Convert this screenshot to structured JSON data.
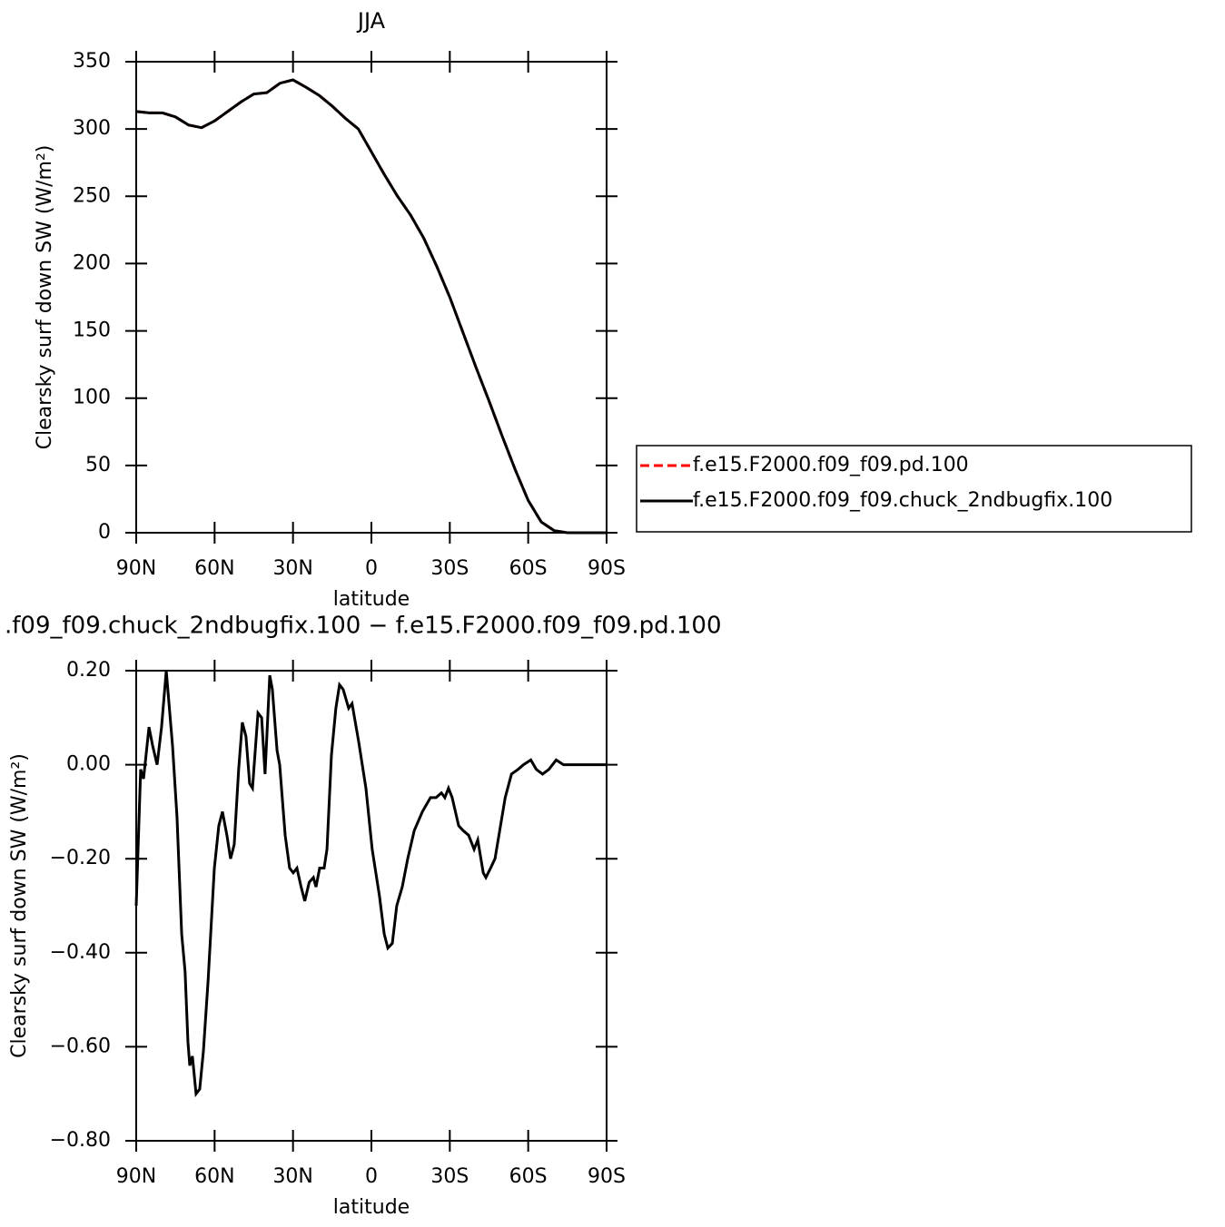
{
  "chart_data": [
    {
      "type": "line",
      "title": "JJA",
      "ylabel": "Clearsky surf down SW (W/m²)",
      "xlabel": "latitude",
      "x": [
        90,
        85,
        80,
        75,
        70,
        65,
        60,
        55,
        50,
        45,
        40,
        35,
        30,
        25,
        20,
        15,
        10,
        5,
        0,
        -5,
        -10,
        -15,
        -20,
        -25,
        -30,
        -35,
        -40,
        -45,
        -50,
        -55,
        -60,
        -65,
        -70,
        -75,
        -80,
        -85,
        -90
      ],
      "series": [
        {
          "name": "f.e15.F2000.f09_f09.pd.100",
          "color": "#ff0000",
          "style": "dashed",
          "values": [
            313,
            312,
            312,
            309,
            303,
            301,
            306,
            313,
            320,
            326,
            327,
            334,
            336.5,
            331,
            325,
            317,
            308,
            300,
            283,
            266,
            250,
            236,
            219,
            198,
            175,
            149,
            123,
            98,
            72,
            47,
            24,
            8,
            1.5,
            0,
            0,
            0,
            0
          ]
        },
        {
          "name": "f.e15.F2000.f09_f09.chuck_2ndbugfix.100",
          "color": "#000000",
          "style": "solid",
          "values": [
            313,
            312,
            312,
            309,
            303,
            301,
            306,
            313,
            320,
            326,
            327,
            334,
            336.5,
            331,
            325,
            317,
            308,
            300,
            283,
            266,
            250,
            236,
            219,
            198,
            175,
            149,
            123,
            98,
            72,
            47,
            24,
            8,
            1.5,
            0,
            0,
            0,
            0
          ]
        }
      ],
      "xlim": [
        90,
        -90
      ],
      "xticks": [
        {
          "value": 90,
          "label": "90N"
        },
        {
          "value": 60,
          "label": "60N"
        },
        {
          "value": 30,
          "label": "30N"
        },
        0,
        {
          "value": -30,
          "label": "30S"
        },
        {
          "value": -60,
          "label": "60S"
        },
        {
          "value": -90,
          "label": "90S"
        }
      ],
      "ylim": [
        0,
        350
      ],
      "yticks": [
        0,
        50,
        100,
        150,
        200,
        250,
        300,
        350
      ],
      "legend": "right"
    },
    {
      "type": "line",
      "title": ".f09_f09.chuck_2ndbugfix.100 − f.e15.F2000.f09_f09.pd.100",
      "ylabel": "Clearsky surf down SW (W/m²)",
      "xlabel": "latitude",
      "x": [
        90,
        88.3,
        87.2,
        85.1,
        83.7,
        82.0,
        80.3,
        78.5,
        76.1,
        74.4,
        72.6,
        71.3,
        70.2,
        69.5,
        68.5,
        67.1,
        65.7,
        64.3,
        62.5,
        60.1,
        58.4,
        57.0,
        55.3,
        53.9,
        52.5,
        50.8,
        49.4,
        48.0,
        46.6,
        45.5,
        43.4,
        42.0,
        40.7,
        38.9,
        37.9,
        36.1,
        35.1,
        33.0,
        31.3,
        29.9,
        28.5,
        26.9,
        25.5,
        23.8,
        22.2,
        21.2,
        19.8,
        18.1,
        17.0,
        15.3,
        13.6,
        12.2,
        10.8,
        8.7,
        7.4,
        4.9,
        2.1,
        -0.3,
        -3.1,
        -4.9,
        -6.3,
        -8.0,
        -9.7,
        -11.8,
        -13.9,
        -16.4,
        -19.5,
        -22.6,
        -24.7,
        -26.8,
        -28.1,
        -29.5,
        -30.9,
        -33.4,
        -35.1,
        -37.2,
        -39.3,
        -40.7,
        -42.8,
        -43.8,
        -45.6,
        -47.3,
        -49.1,
        -51.2,
        -53.6,
        -56.1,
        -58.2,
        -61.0,
        -63.1,
        -65.5,
        -67.9,
        -70.7,
        -73.5,
        -77.0,
        -80.5,
        -90
      ],
      "values": [
        -0.3,
        -0.01,
        -0.03,
        0.08,
        0.04,
        0.0,
        0.08,
        0.2,
        0.04,
        -0.11,
        -0.36,
        -0.44,
        -0.59,
        -0.64,
        -0.62,
        -0.7,
        -0.69,
        -0.61,
        -0.46,
        -0.22,
        -0.13,
        -0.1,
        -0.15,
        -0.2,
        -0.17,
        -0.01,
        0.09,
        0.06,
        -0.04,
        -0.05,
        0.11,
        0.1,
        -0.02,
        0.19,
        0.16,
        0.03,
        0.0,
        -0.15,
        -0.22,
        -0.23,
        -0.22,
        -0.26,
        -0.29,
        -0.25,
        -0.24,
        -0.26,
        -0.22,
        -0.22,
        -0.18,
        0.02,
        0.12,
        0.17,
        0.16,
        0.12,
        0.13,
        0.05,
        -0.05,
        -0.18,
        -0.28,
        -0.36,
        -0.39,
        -0.38,
        -0.3,
        -0.26,
        -0.2,
        -0.14,
        -0.1,
        -0.07,
        -0.07,
        -0.06,
        -0.07,
        -0.05,
        -0.07,
        -0.13,
        -0.14,
        -0.15,
        -0.18,
        -0.16,
        -0.23,
        -0.24,
        -0.22,
        -0.2,
        -0.14,
        -0.07,
        -0.02,
        -0.01,
        0.0,
        0.01,
        -0.01,
        -0.02,
        -0.01,
        0.01,
        0.0,
        0.0,
        0.0,
        0.0
      ],
      "color": "#000000",
      "xlim": [
        90,
        -90
      ],
      "xticks": [
        {
          "value": 90,
          "label": "90N"
        },
        {
          "value": 60,
          "label": "60N"
        },
        {
          "value": 30,
          "label": "30N"
        },
        0,
        {
          "value": -30,
          "label": "30S"
        },
        {
          "value": -60,
          "label": "60S"
        },
        {
          "value": -90,
          "label": "90S"
        }
      ],
      "ylim": [
        -0.8,
        0.2
      ],
      "yticks": [
        {
          "value": 0.2,
          "label": "0.20"
        },
        {
          "value": 0,
          "label": "0.00"
        },
        {
          "value": -0.2,
          "label": "−0.20"
        },
        {
          "value": -0.4,
          "label": "−0.40"
        },
        {
          "value": -0.6,
          "label": "−0.60"
        },
        {
          "value": -0.8,
          "label": "−0.80"
        }
      ]
    }
  ]
}
